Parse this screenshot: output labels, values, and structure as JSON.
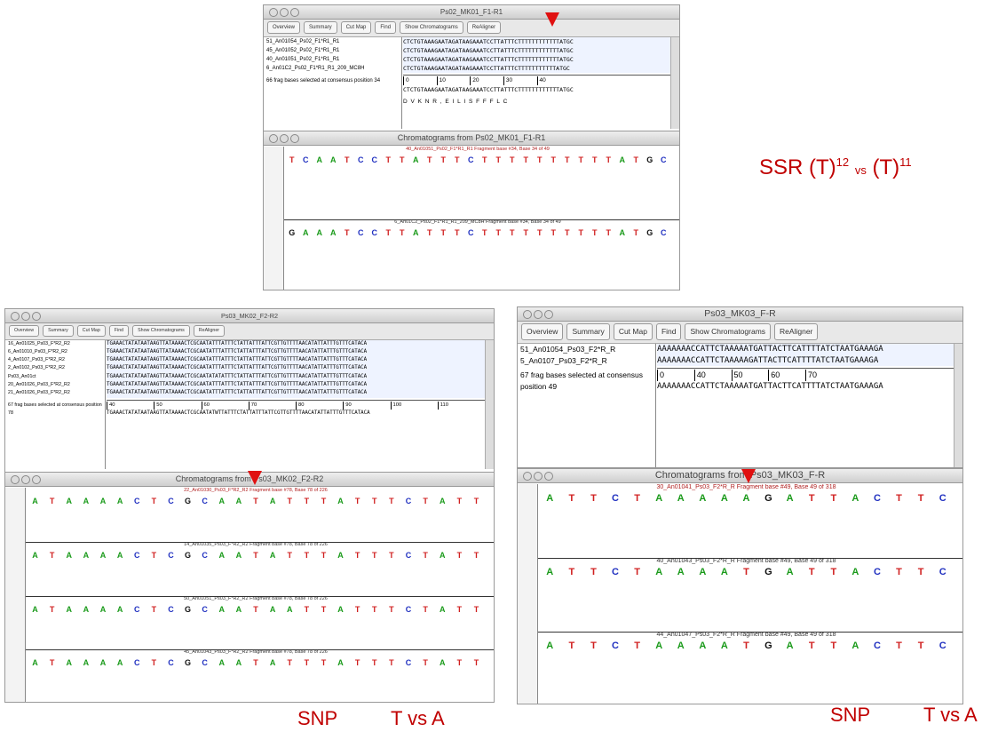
{
  "alignments": [
    {
      "title": "Ps02_MK01_F1-R1",
      "buttons": [
        "Overview",
        "Summary",
        "Cut Map",
        "Find",
        "Show Chromatograms",
        "ReAligner"
      ],
      "rows": [
        {
          "name": "51_An01054_Ps02_F1*R1_R1",
          "seq": "CTCTGTAAAGAATAGATAAGAAATCCTTATTTCTTTTTTTTTTTTATGC"
        },
        {
          "name": "45_An01052_Ps02_F1*R1_R1",
          "seq": "CTCTGTAAAGAATAGATAAGAAATCCTTATTTCTTTTTTTTTTTTATGC"
        },
        {
          "name": "40_An01051_Ps02_F1*R1_R1",
          "seq": "CTCTGTAAAGAATAGATAAGAAATCCTTATTTCTTTTTTTTTTTTATGC"
        },
        {
          "name": "6_An01C2_Ps02_F1*R1_R1_209_MC8H",
          "seq": "CTCTGTAAAGAATAGATAAGAAATCCTTATTTCTTTTTTTTTTTATGC"
        }
      ],
      "ruler": [
        "0",
        "10",
        "20",
        "30",
        "40"
      ],
      "consensus": "CTCTGTAAAGAATAGATAAGAAATCCTTATTTCTTTTTTTTTTTTATGC",
      "translation": "D V K N R , E I L I S F F F L C",
      "status": "66 frag bases selected at consensus position 34"
    },
    {
      "title": "Ps03_MK02_F2-R2",
      "buttons": [
        "Overview",
        "Summary",
        "Cut Map",
        "Find",
        "Show Chromatograms",
        "ReAligner"
      ],
      "rows": [
        {
          "name": "16_An01025_Ps03_F*R2_R2",
          "seq": "TGAAACTATATAATAAGTTATAAAACTCGCAATATTTATTTCTATTATTTATTCGTTGTTTTAACATATTATTTGTTTCATACA"
        },
        {
          "name": "6_An01010_Ps03_F*R2_R2",
          "seq": "TGAAACTATATAATAAGTTATAAAACTCGCAATATTTATTTCTATTATTTATTCGTTGTTTTAACATATTATTTGTTTCATACA"
        },
        {
          "name": "4_An0107_Ps03_F*R2_R2",
          "seq": "TGAAACTATATAATAAGTTATAAAACTCGCAATATTTATTTCTATTATTTATTCGTTGTTTTAACATATTATTTGTTTCATACA"
        },
        {
          "name": "2_An0102_Ps03_F*R2_R2",
          "seq": "TGAAACTATATAATAAGTTATAAAACTCGCAATATTTATTTCTATTATTTATTCGTTGTTTTAACATATTATTTGTTTCATACA"
        },
        {
          "name": "Ps03_An01ct",
          "seq": "TGAAACTATATAATAAGTTATAAAACTCGCAATATATATTTCTATTATTTATTCGTTGTTTTAACATATTATTTGTTTCATACA"
        },
        {
          "name": "20_An01026_Ps03_F*R2_R2",
          "seq": "TGAAACTATATAATAAGTTATAAAACTCGCAATATTTATTTCTATTATTTATTCGTTGTTTTAACATATTATTTGTTTCATACA"
        },
        {
          "name": "21_An01026_Ps03_F*R2_R2",
          "seq": "TGAAACTATATAATAAGTTATAAAACTCGCAATATTTATTTCTATTATTTATTCGTTGTTTTAACATATTATTTGTTTCATACA"
        }
      ],
      "ruler": [
        "40",
        "50",
        "60",
        "70",
        "80",
        "90",
        "100",
        "110"
      ],
      "consensus": "TGAAACTATATAATAAGTTATAAAACTCGCAATATWTTATTTCTATTATTTATTCGTTGTTTTAACATATTATTTGTTTCATACA",
      "status": "67 frag bases selected at consensus position 78"
    },
    {
      "title": "Ps03_MK03_F-R",
      "buttons": [
        "Overview",
        "Summary",
        "Cut Map",
        "Find",
        "Show Chromatograms",
        "ReAligner"
      ],
      "rows": [
        {
          "name": "51_An01054_Ps03_F2*R_R",
          "seq": "AAAAAAACCATTCTAAAAATGATTACTTCATTTTATCTAATGAAAGA"
        },
        {
          "name": "5_An0107_Ps03_F2*R_R",
          "seq": "AAAAAAACCATTCTAAAAAGATTACTTCATTTTATCTAATGAAAGA"
        }
      ],
      "ruler": [
        "0",
        "40",
        "50",
        "60",
        "70"
      ],
      "consensus": "AAAAAAACCATTCTAAAAATGATTACTTCATTTTATCTAATGAAAGA",
      "status": "67 frag bases selected at consensus position 49"
    }
  ],
  "chromatograms": [
    {
      "title": "Chromatograms from Ps02_MK01_F1-R1",
      "traces": [
        {
          "header": "40_An01051_Ps02_F1*R1_R1 Fragment base #34, Base 34 of 49",
          "bases": [
            "T",
            "C",
            "A",
            "A",
            "T",
            "C",
            "C",
            "T",
            "T",
            "A",
            "T",
            "T",
            "T",
            "C",
            "T",
            "T",
            "T",
            "T",
            "T",
            "T",
            "T",
            "T",
            "T",
            "T",
            "A",
            "T",
            "G",
            "C"
          ]
        },
        {
          "header": "6_An01C2_Ps02_F1*R1_R1_209_MC8H Fragment base #34, Base 34 of 49",
          "bases": [
            "G",
            "A",
            "A",
            "A",
            "T",
            "C",
            "C",
            "T",
            "T",
            "A",
            "T",
            "T",
            "T",
            "C",
            "T",
            "T",
            "T",
            "T",
            "T",
            "T",
            "T",
            "T",
            "T",
            "T",
            "A",
            "T",
            "G",
            "C"
          ]
        }
      ]
    },
    {
      "title": "Chromatograms from Ps03_MK02_F2-R2",
      "traces": [
        {
          "header": "22_An01030_Ps03_F*R2_R2 Fragment base #78, Base 78 of 226",
          "bases": [
            "A",
            "T",
            "A",
            "A",
            "A",
            "A",
            "C",
            "T",
            "C",
            "G",
            "C",
            "A",
            "A",
            "T",
            "A",
            "T",
            "T",
            "T",
            "A",
            "T",
            "T",
            "T",
            "C",
            "T",
            "A",
            "T",
            "T"
          ]
        },
        {
          "header": "14_An01035_Ps03_F*R2_R2 Fragment base #78, Base 78 of 226",
          "bases": [
            "A",
            "T",
            "A",
            "A",
            "A",
            "A",
            "C",
            "T",
            "C",
            "G",
            "C",
            "A",
            "A",
            "T",
            "A",
            "T",
            "T",
            "T",
            "A",
            "T",
            "T",
            "T",
            "C",
            "T",
            "A",
            "T",
            "T"
          ]
        },
        {
          "header": "50_An01051_Ps03_F*R2_R2 Fragment base #78, Base 78 of 226",
          "bases": [
            "A",
            "T",
            "A",
            "A",
            "A",
            "A",
            "C",
            "T",
            "C",
            "G",
            "C",
            "A",
            "A",
            "T",
            "A",
            "A",
            "T",
            "T",
            "A",
            "T",
            "T",
            "T",
            "C",
            "T",
            "A",
            "T",
            "T"
          ]
        },
        {
          "header": "45_An01043_Ps03_F*R2_R2 Fragment base #78, Base 78 of 226",
          "bases": [
            "A",
            "T",
            "A",
            "A",
            "A",
            "A",
            "C",
            "T",
            "C",
            "G",
            "C",
            "A",
            "A",
            "T",
            "A",
            "T",
            "T",
            "T",
            "A",
            "T",
            "T",
            "T",
            "C",
            "T",
            "A",
            "T",
            "T"
          ]
        }
      ]
    },
    {
      "title": "Chromatograms from Ps03_MK03_F-R",
      "traces": [
        {
          "header": "30_An01041_Ps03_F2*R_R Fragment base #49, Base 49 of 318",
          "bases": [
            "A",
            "T",
            "T",
            "C",
            "T",
            "A",
            "A",
            "A",
            "A",
            "A",
            "G",
            "A",
            "T",
            "T",
            "A",
            "C",
            "T",
            "T",
            "C"
          ]
        },
        {
          "header": "40_An01043_Ps03_F2*R_R Fragment base #49, Base 49 of 318",
          "bases": [
            "A",
            "T",
            "T",
            "C",
            "T",
            "A",
            "A",
            "A",
            "A",
            "T",
            "G",
            "A",
            "T",
            "T",
            "A",
            "C",
            "T",
            "T",
            "C"
          ]
        },
        {
          "header": "44_An01047_Ps03_F2*R_R Fragment base #49, Base 49 of 318",
          "bases": [
            "A",
            "T",
            "T",
            "C",
            "T",
            "A",
            "A",
            "A",
            "A",
            "T",
            "G",
            "A",
            "T",
            "T",
            "A",
            "C",
            "T",
            "T",
            "C"
          ]
        }
      ]
    }
  ],
  "annotations": {
    "ssr": {
      "label": "SSR (T)",
      "sup1": "12",
      "vs": "vs",
      "label2": "(T)",
      "sup2": "11"
    },
    "snp1": {
      "label": "SNP",
      "compare": "T vs A"
    },
    "snp2": {
      "label": "SNP",
      "compare": "T vs A"
    }
  }
}
